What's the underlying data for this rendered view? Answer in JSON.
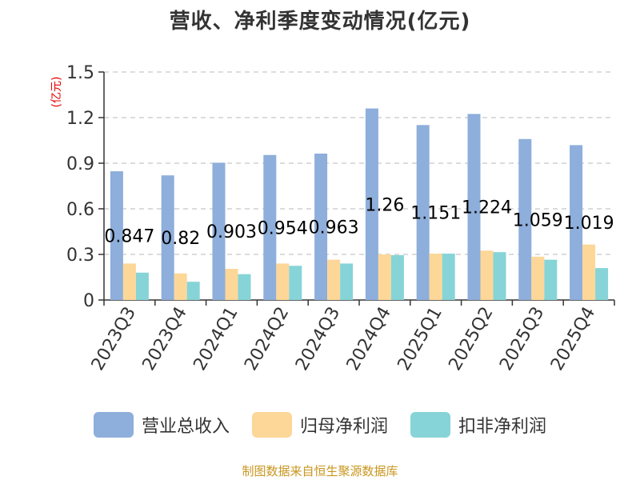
{
  "title": "营收、净利季度变动情况(亿元)",
  "source": "制图数据来自恒生聚源数据库",
  "colors": {
    "revenue": "#8eaedb",
    "net_profit": "#fdd798",
    "deducted_profit": "#86d4d7",
    "axis": "#333333",
    "grid": "#c8c8c8",
    "unit": "#e60000"
  },
  "chart_data": {
    "type": "bar",
    "title": "营收、净利季度变动情况(亿元)",
    "ylabel": "(亿元)",
    "xlabel": "",
    "ylim": [
      0,
      1.5
    ],
    "yticks": [
      "0",
      "0.3",
      "0.6",
      "0.9",
      "1.2",
      "1.5"
    ],
    "grid": true,
    "legend_position": "bottom",
    "categories": [
      "2023Q3",
      "2023Q4",
      "2024Q1",
      "2024Q2",
      "2024Q3",
      "2024Q4",
      "2025Q1",
      "2025Q2",
      "2025Q3",
      "2025Q4"
    ],
    "series": [
      {
        "name": "营业总收入",
        "values": [
          0.847,
          0.82,
          0.903,
          0.954,
          0.963,
          1.26,
          1.151,
          1.224,
          1.059,
          1.019
        ],
        "data_labels": [
          "0.847",
          "0.82",
          "0.903",
          "0.954",
          "0.963",
          "1.26",
          "1.151",
          "1.224",
          "1.059",
          "1.019"
        ]
      },
      {
        "name": "归母净利润",
        "values": [
          0.24,
          0.175,
          0.205,
          0.24,
          0.265,
          0.3,
          0.305,
          0.325,
          0.285,
          0.365
        ]
      },
      {
        "name": "扣非净利润",
        "values": [
          0.18,
          0.12,
          0.17,
          0.225,
          0.24,
          0.295,
          0.305,
          0.315,
          0.265,
          0.21
        ]
      }
    ]
  }
}
